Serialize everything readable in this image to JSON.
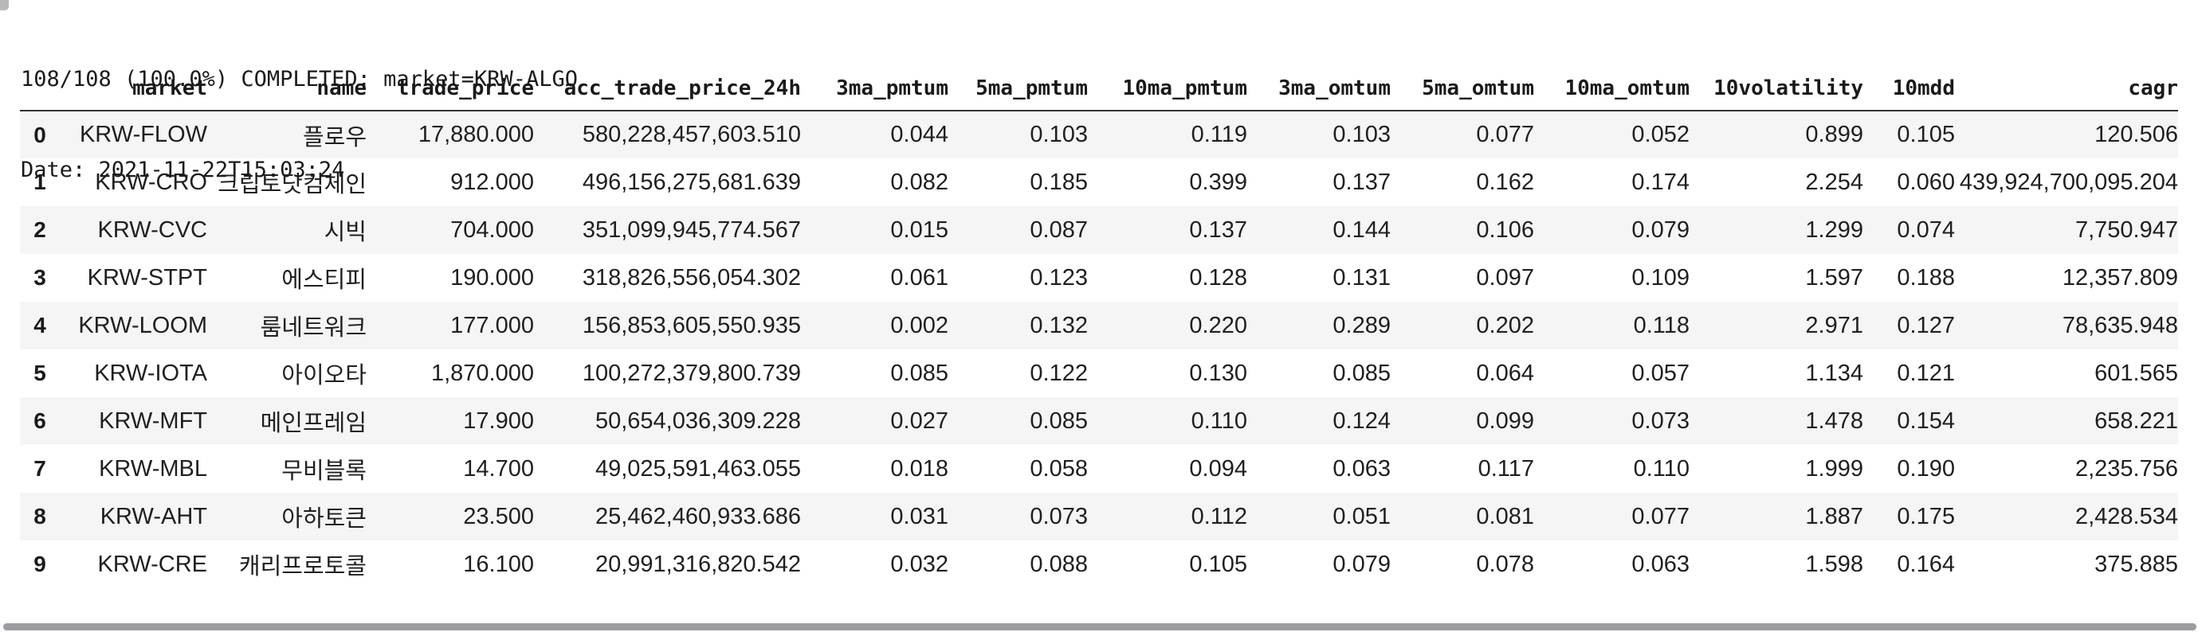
{
  "log": {
    "line1": "108/108 (100.0%) COMPLETED: market=KRW-ALGO",
    "line2": "Date: 2021-11-22T15:03:24"
  },
  "table": {
    "index_header": "",
    "columns": [
      "market",
      "name",
      "trade_price",
      "acc_trade_price_24h",
      "3ma_pmtum",
      "5ma_pmtum",
      "10ma_pmtum",
      "3ma_omtum",
      "5ma_omtum",
      "10ma_omtum",
      "10volatility",
      "10mdd",
      "cagr"
    ],
    "rows": [
      {
        "index": "0",
        "cells": [
          "KRW-FLOW",
          "플로우",
          "17,880.000",
          "580,228,457,603.510",
          "0.044",
          "0.103",
          "0.119",
          "0.103",
          "0.077",
          "0.052",
          "0.899",
          "0.105",
          "120.506"
        ]
      },
      {
        "index": "1",
        "cells": [
          "KRW-CRO",
          "크립토닷컴체인",
          "912.000",
          "496,156,275,681.639",
          "0.082",
          "0.185",
          "0.399",
          "0.137",
          "0.162",
          "0.174",
          "2.254",
          "0.060",
          "439,924,700,095.204"
        ]
      },
      {
        "index": "2",
        "cells": [
          "KRW-CVC",
          "시빅",
          "704.000",
          "351,099,945,774.567",
          "0.015",
          "0.087",
          "0.137",
          "0.144",
          "0.106",
          "0.079",
          "1.299",
          "0.074",
          "7,750.947"
        ]
      },
      {
        "index": "3",
        "cells": [
          "KRW-STPT",
          "에스티피",
          "190.000",
          "318,826,556,054.302",
          "0.061",
          "0.123",
          "0.128",
          "0.131",
          "0.097",
          "0.109",
          "1.597",
          "0.188",
          "12,357.809"
        ]
      },
      {
        "index": "4",
        "cells": [
          "KRW-LOOM",
          "룸네트워크",
          "177.000",
          "156,853,605,550.935",
          "0.002",
          "0.132",
          "0.220",
          "0.289",
          "0.202",
          "0.118",
          "2.971",
          "0.127",
          "78,635.948"
        ]
      },
      {
        "index": "5",
        "cells": [
          "KRW-IOTA",
          "아이오타",
          "1,870.000",
          "100,272,379,800.739",
          "0.085",
          "0.122",
          "0.130",
          "0.085",
          "0.064",
          "0.057",
          "1.134",
          "0.121",
          "601.565"
        ]
      },
      {
        "index": "6",
        "cells": [
          "KRW-MFT",
          "메인프레임",
          "17.900",
          "50,654,036,309.228",
          "0.027",
          "0.085",
          "0.110",
          "0.124",
          "0.099",
          "0.073",
          "1.478",
          "0.154",
          "658.221"
        ]
      },
      {
        "index": "7",
        "cells": [
          "KRW-MBL",
          "무비블록",
          "14.700",
          "49,025,591,463.055",
          "0.018",
          "0.058",
          "0.094",
          "0.063",
          "0.117",
          "0.110",
          "1.999",
          "0.190",
          "2,235.756"
        ]
      },
      {
        "index": "8",
        "cells": [
          "KRW-AHT",
          "아하토큰",
          "23.500",
          "25,462,460,933.686",
          "0.031",
          "0.073",
          "0.112",
          "0.051",
          "0.081",
          "0.077",
          "1.887",
          "0.175",
          "2,428.534"
        ]
      },
      {
        "index": "9",
        "cells": [
          "KRW-CRE",
          "캐리프로토콜",
          "16.100",
          "20,991,316,820.542",
          "0.032",
          "0.088",
          "0.105",
          "0.079",
          "0.078",
          "0.063",
          "1.598",
          "0.164",
          "375.885"
        ]
      }
    ]
  },
  "colors": {
    "row_stripe": "#f5f5f5",
    "header_border": "#333333",
    "text": "#1c1c1c",
    "scrollbar_thumb": "#9c9ca0"
  }
}
